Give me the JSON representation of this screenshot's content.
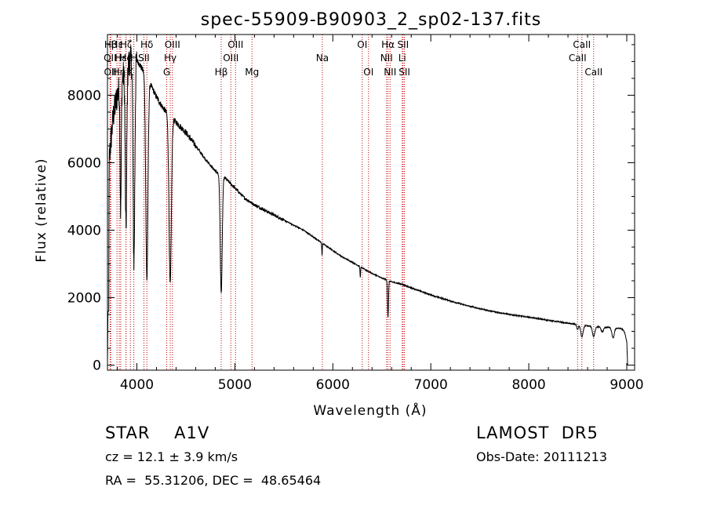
{
  "chart_data": {
    "type": "line",
    "title": "spec-55909-B90903_2_sp02-137.fits",
    "xlabel": "Wavelength (Å)",
    "ylabel": "Flux (relative)",
    "xlim": [
      3700,
      9080
    ],
    "ylim": [
      -150,
      9800
    ],
    "xticks": [
      4000,
      5000,
      6000,
      7000,
      8000,
      9000
    ],
    "yticks": [
      0,
      2000,
      4000,
      6000,
      8000
    ],
    "grid": false,
    "lines": [
      {
        "label": "Hβ",
        "x": 3734,
        "row": 0
      },
      {
        "label": "OII",
        "x": 3727,
        "row": 1
      },
      {
        "label": "OII",
        "x": 3730,
        "row": 2
      },
      {
        "label": "Hε",
        "x": 3797,
        "row": 0
      },
      {
        "label": "Hε",
        "x": 3835,
        "row": 1
      },
      {
        "label": "Hη",
        "x": 3820,
        "row": 2
      },
      {
        "label": "Hζ",
        "x": 3889,
        "row": 0
      },
      {
        "label": "He",
        "x": 3889,
        "row": 1
      },
      {
        "label": "K",
        "x": 3934,
        "row": 2
      },
      {
        "label": "H",
        "x": 3969,
        "row": 1
      },
      {
        "label": "Hδ",
        "x": 4102,
        "row": 0
      },
      {
        "label": "SII",
        "x": 4072,
        "row": 1
      },
      {
        "label": "OIII",
        "x": 4363,
        "row": 0
      },
      {
        "label": "Hγ",
        "x": 4341,
        "row": 1
      },
      {
        "label": "G",
        "x": 4305,
        "row": 2
      },
      {
        "label": "Hβ",
        "x": 4861,
        "row": 2
      },
      {
        "label": "OIII",
        "x": 5007,
        "row": 0
      },
      {
        "label": "OIII",
        "x": 4959,
        "row": 1
      },
      {
        "label": "Mg",
        "x": 5175,
        "row": 2
      },
      {
        "label": "Na",
        "x": 5893,
        "row": 1
      },
      {
        "label": "OI",
        "x": 6300,
        "row": 0
      },
      {
        "label": "OI",
        "x": 6364,
        "row": 2
      },
      {
        "label": "Hα",
        "x": 6563,
        "row": 0
      },
      {
        "label": "NII",
        "x": 6548,
        "row": 1
      },
      {
        "label": "NII",
        "x": 6584,
        "row": 2
      },
      {
        "label": "SII",
        "x": 6717,
        "row": 0
      },
      {
        "label": "Li",
        "x": 6708,
        "row": 1
      },
      {
        "label": "SII",
        "x": 6731,
        "row": 2
      },
      {
        "label": "CaII",
        "x": 8542,
        "row": 0
      },
      {
        "label": "CaII",
        "x": 8498,
        "row": 1
      },
      {
        "label": "CaII",
        "x": 8662,
        "row": 2
      }
    ],
    "continuum": [
      [
        3700,
        0
      ],
      [
        3720,
        6200
      ],
      [
        3760,
        7400
      ],
      [
        3800,
        8000
      ],
      [
        3850,
        8500
      ],
      [
        3900,
        8900
      ],
      [
        3950,
        9100
      ],
      [
        4000,
        9050
      ],
      [
        4050,
        8800
      ],
      [
        4100,
        8550
      ],
      [
        4150,
        8250
      ],
      [
        4200,
        7950
      ],
      [
        4250,
        7700
      ],
      [
        4300,
        7500
      ],
      [
        4400,
        7200
      ],
      [
        4500,
        6900
      ],
      [
        4600,
        6500
      ],
      [
        4700,
        6100
      ],
      [
        4800,
        5750
      ],
      [
        4900,
        5550
      ],
      [
        5000,
        5250
      ],
      [
        5100,
        4950
      ],
      [
        5200,
        4750
      ],
      [
        5300,
        4600
      ],
      [
        5400,
        4450
      ],
      [
        5500,
        4300
      ],
      [
        5600,
        4150
      ],
      [
        5700,
        4000
      ],
      [
        5800,
        3800
      ],
      [
        5900,
        3600
      ],
      [
        6000,
        3400
      ],
      [
        6100,
        3200
      ],
      [
        6200,
        3050
      ],
      [
        6300,
        2880
      ],
      [
        6400,
        2720
      ],
      [
        6500,
        2580
      ],
      [
        6600,
        2470
      ],
      [
        6700,
        2400
      ],
      [
        6800,
        2290
      ],
      [
        7000,
        2080
      ],
      [
        7200,
        1900
      ],
      [
        7400,
        1740
      ],
      [
        7600,
        1610
      ],
      [
        7800,
        1500
      ],
      [
        8000,
        1420
      ],
      [
        8200,
        1330
      ],
      [
        8400,
        1240
      ],
      [
        8600,
        1160
      ],
      [
        8800,
        1120
      ],
      [
        8950,
        1080
      ],
      [
        9000,
        900
      ],
      [
        9010,
        0
      ]
    ],
    "absorption": [
      {
        "center": 3835,
        "depth": 3800,
        "width": 6
      },
      {
        "center": 3889,
        "depth": 4800,
        "width": 8
      },
      {
        "center": 3970,
        "depth": 6000,
        "width": 9
      },
      {
        "center": 4102,
        "depth": 6000,
        "width": 11
      },
      {
        "center": 4340,
        "depth": 5000,
        "width": 12
      },
      {
        "center": 4861,
        "depth": 3500,
        "width": 10
      },
      {
        "center": 5890,
        "depth": 350,
        "width": 3
      },
      {
        "center": 6280,
        "depth": 300,
        "width": 3
      },
      {
        "center": 6563,
        "depth": 1100,
        "width": 5
      },
      {
        "center": 8498,
        "depth": 150,
        "width": 8
      },
      {
        "center": 8542,
        "depth": 350,
        "width": 12
      },
      {
        "center": 8662,
        "depth": 300,
        "width": 12
      },
      {
        "center": 8750,
        "depth": 150,
        "width": 12
      },
      {
        "center": 8860,
        "depth": 300,
        "width": 12
      },
      {
        "center": 9000,
        "depth": 200,
        "width": 10
      }
    ]
  },
  "info": {
    "class_label": "STAR    A1V",
    "survey": "LAMOST  DR5",
    "cz": "cz = 12.1 ± 3.9 km/s",
    "obs_date": "Obs-Date: 20111213",
    "radec": "RA =  55.31206, DEC =  48.65464"
  },
  "colors": {
    "spectrum": "#000000",
    "line_markers": "#c00000",
    "axes": "#000000"
  }
}
